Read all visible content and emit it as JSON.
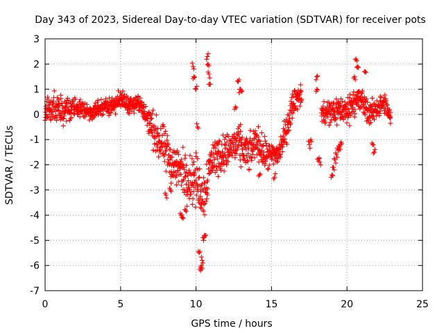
{
  "chart_data": {
    "type": "scatter",
    "title": "Day 343 of 2023, Sidereal Day-to-day VTEC variation (SDTVAR) for receiver pots",
    "xlabel": "GPS time / hours",
    "ylabel": "SDTVAR / TECUs",
    "xlim": [
      0,
      25
    ],
    "ylim": [
      -7,
      3
    ],
    "xticks": [
      0,
      5,
      10,
      15,
      20,
      25
    ],
    "yticks": [
      3,
      2,
      1,
      0,
      -1,
      -2,
      -3,
      -4,
      -5,
      -6,
      -7
    ],
    "xtick_labels": [
      "0",
      "5",
      "10",
      "15",
      "20",
      "25"
    ],
    "ytick_labels": [
      "3",
      "2",
      "1",
      "0",
      "-1",
      "-2",
      "-3",
      "-4",
      "-5",
      "-6",
      "-7"
    ],
    "grid": true,
    "marker": "plus",
    "color": "#ff0000",
    "trend": {
      "description": "approximate central tendency of SDTVAR, with band half-width (spread)",
      "x": [
        0.0,
        0.5,
        1.0,
        1.5,
        2.0,
        2.5,
        3.0,
        3.5,
        4.0,
        4.5,
        5.0,
        5.5,
        6.0,
        6.5,
        7.0,
        7.5,
        8.0,
        8.5,
        9.0,
        9.5,
        10.0,
        10.5,
        11.0,
        11.5,
        12.0,
        12.5,
        13.0,
        13.5,
        14.0,
        14.5,
        15.0,
        15.5,
        16.0,
        16.5,
        17.0,
        18.5,
        19.0,
        19.5,
        20.0,
        20.5,
        21.0,
        21.5,
        22.0,
        22.5,
        22.9
      ],
      "y": [
        0.2,
        0.3,
        0.1,
        0.2,
        0.3,
        0.2,
        0.1,
        0.2,
        0.3,
        0.4,
        0.6,
        0.4,
        0.5,
        0.2,
        -0.5,
        -1.0,
        -1.5,
        -2.0,
        -2.2,
        -2.5,
        -2.6,
        -3.2,
        -1.8,
        -1.6,
        -1.5,
        -1.2,
        -1.3,
        -1.6,
        -1.0,
        -1.6,
        -1.7,
        -1.5,
        -0.6,
        0.6,
        0.8,
        0.0,
        0.1,
        0.2,
        0.1,
        0.6,
        0.5,
        0.0,
        0.3,
        0.4,
        -0.2
      ],
      "spread": [
        0.8,
        0.9,
        0.8,
        0.7,
        0.6,
        0.5,
        0.5,
        0.5,
        0.5,
        0.5,
        0.5,
        0.5,
        0.6,
        0.7,
        1.0,
        1.1,
        1.3,
        1.2,
        1.3,
        1.4,
        1.5,
        1.5,
        1.2,
        1.1,
        1.0,
        1.1,
        1.1,
        1.0,
        0.9,
        0.9,
        0.8,
        0.8,
        0.8,
        0.7,
        0.7,
        0.8,
        0.9,
        0.8,
        0.8,
        0.9,
        0.8,
        0.7,
        0.6,
        0.6,
        0.5
      ]
    },
    "gaps": [
      [
        17.0,
        18.3
      ]
    ],
    "extra_points": [
      {
        "x": 9.8,
        "y": 1.9
      },
      {
        "x": 9.85,
        "y": 1.5
      },
      {
        "x": 10.0,
        "y": 1.0
      },
      {
        "x": 10.1,
        "y": -0.5
      },
      {
        "x": 10.75,
        "y": 2.3
      },
      {
        "x": 10.8,
        "y": 2.0
      },
      {
        "x": 10.85,
        "y": 1.6
      },
      {
        "x": 10.9,
        "y": 1.2
      },
      {
        "x": 10.2,
        "y": -5.5
      },
      {
        "x": 10.3,
        "y": -6.2
      },
      {
        "x": 10.35,
        "y": -6.0
      },
      {
        "x": 10.5,
        "y": -5.0
      },
      {
        "x": 10.6,
        "y": -4.8
      },
      {
        "x": 10.4,
        "y": -5.8
      },
      {
        "x": 9.0,
        "y": -4.0
      },
      {
        "x": 9.1,
        "y": -4.1
      },
      {
        "x": 12.8,
        "y": 1.3
      },
      {
        "x": 12.9,
        "y": 1.0
      },
      {
        "x": 13.0,
        "y": 0.9
      },
      {
        "x": 12.6,
        "y": 0.3
      },
      {
        "x": 18.0,
        "y": 1.5
      },
      {
        "x": 18.0,
        "y": 1.0
      },
      {
        "x": 17.5,
        "y": -1.2
      },
      {
        "x": 17.6,
        "y": -1.0
      },
      {
        "x": 18.1,
        "y": -1.85
      },
      {
        "x": 18.2,
        "y": -1.9
      },
      {
        "x": 19.0,
        "y": -2.4
      },
      {
        "x": 19.2,
        "y": -1.8
      },
      {
        "x": 19.4,
        "y": -1.4
      },
      {
        "x": 19.6,
        "y": -1.1
      },
      {
        "x": 19.1,
        "y": -2.1
      },
      {
        "x": 19.3,
        "y": -1.6
      },
      {
        "x": 19.5,
        "y": -1.3
      },
      {
        "x": 20.6,
        "y": 2.2
      },
      {
        "x": 20.7,
        "y": 1.9
      },
      {
        "x": 20.5,
        "y": 1.5
      },
      {
        "x": 21.2,
        "y": 1.7
      },
      {
        "x": 21.8,
        "y": -1.5
      },
      {
        "x": 21.7,
        "y": -1.2
      },
      {
        "x": 9.3,
        "y": -3.8
      },
      {
        "x": 8.0,
        "y": -3.2
      },
      {
        "x": 8.3,
        "y": -3.0
      },
      {
        "x": 14.2,
        "y": -2.4
      },
      {
        "x": 15.2,
        "y": -2.5
      }
    ]
  }
}
